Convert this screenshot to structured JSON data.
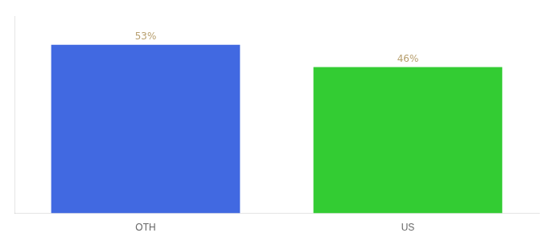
{
  "chart_data": {
    "type": "bar",
    "categories": [
      "OTH",
      "US"
    ],
    "values": [
      53,
      46
    ],
    "value_labels": [
      "53%",
      "46%"
    ],
    "colors": [
      "#4169e1",
      "#33cc33"
    ],
    "ylim": [
      0,
      62
    ],
    "data_labels": true,
    "tick_labels": "x",
    "grid": false
  }
}
